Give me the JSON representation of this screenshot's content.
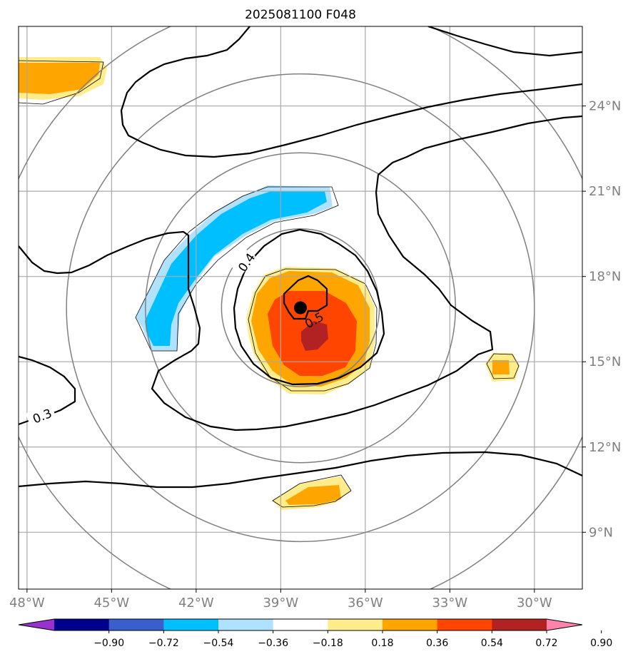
{
  "chart_data": {
    "type": "contour-map",
    "title": "2025081100 F048",
    "x_ticks": [
      "48°W",
      "45°W",
      "42°W",
      "39°W",
      "36°W",
      "33°W",
      "30°W"
    ],
    "x_values": [
      -48,
      -45,
      -42,
      -39,
      -36,
      -33,
      -30
    ],
    "y_ticks": [
      "24°N",
      "21°N",
      "18°N",
      "15°N",
      "12°N",
      "9°N"
    ],
    "y_values": [
      24,
      21,
      18,
      15,
      12,
      9
    ],
    "xlim": [
      -48.3,
      -28.3
    ],
    "ylim": [
      7.0,
      26.8
    ],
    "grid": true,
    "range_rings_center": [
      -38.3,
      16.9
    ],
    "center_marker": {
      "lon": -38.3,
      "lat": 16.9
    },
    "colorbar": {
      "levels": [
        "−0.90",
        "−0.72",
        "−0.54",
        "−0.36",
        "−0.18",
        "0.18",
        "0.36",
        "0.54",
        "0.72",
        "0.90"
      ],
      "colors": [
        "#9932CC",
        "#00008B",
        "#3A5FCD",
        "#00BFFF",
        "#B0E2FF",
        "#FFFFFF",
        "#FFEC8B",
        "#FFA500",
        "#FF4500",
        "#B22222",
        "#FF82AB"
      ],
      "extend": "both"
    },
    "contour_labels": [
      "0.3",
      "0.4",
      "0.5"
    ]
  }
}
